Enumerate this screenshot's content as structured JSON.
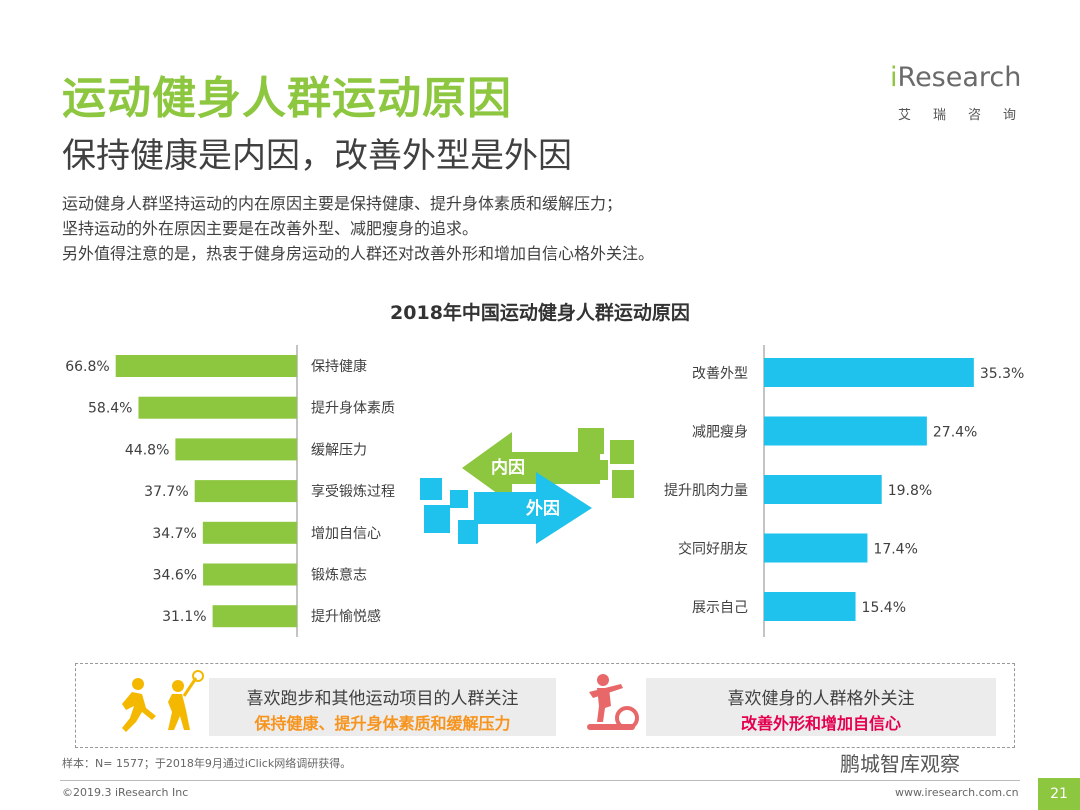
{
  "header": {
    "title": "运动健身人群运动原因",
    "subtitle": "保持健康是内因，改善外型是外因",
    "description": [
      "运动健身人群坚持运动的内在原因主要是保持健康、提升身体素质和缓解压力；",
      "坚持运动的外在原因主要是在改善外型、减肥瘦身的追求。",
      "另外值得注意的是，热衷于健身房运动的人群还对改善外形和增加自信心格外关注。"
    ]
  },
  "logo": {
    "word_i": "i",
    "word_rest": "Research",
    "chinese": "艾瑞咨询"
  },
  "chart_data": [
    {
      "type": "bar",
      "orientation": "horizontal",
      "group": "内因",
      "title": "2018年中国运动健身人群运动原因",
      "categories": [
        "保持健康",
        "提升身体素质",
        "缓解压力",
        "享受锻炼过程",
        "增加自信心",
        "锻炼意志",
        "提升愉悦感"
      ],
      "values": [
        66.8,
        58.4,
        44.8,
        37.7,
        34.7,
        34.6,
        31.1
      ],
      "labels": [
        "66.8%",
        "58.4%",
        "44.8%",
        "37.7%",
        "34.7%",
        "34.6%",
        "31.1%"
      ],
      "xlim": [
        0,
        70
      ],
      "unit": "%"
    },
    {
      "type": "bar",
      "orientation": "horizontal",
      "group": "外因",
      "categories": [
        "改善外型",
        "减肥瘦身",
        "提升肌肉力量",
        "交同好朋友",
        "展示自己"
      ],
      "values": [
        35.3,
        27.4,
        19.8,
        17.4,
        15.4
      ],
      "labels": [
        "35.3%",
        "27.4%",
        "19.8%",
        "17.4%",
        "15.4%"
      ],
      "xlim": [
        0,
        36
      ],
      "unit": "%"
    }
  ],
  "arrows": {
    "inner": "内因",
    "outer": "外因"
  },
  "colors": {
    "green": "#8dc63f",
    "blue": "#1ec2ec",
    "orange": "#f7941d",
    "pink": "#e5004f",
    "icon_yellow": "#f5b800",
    "icon_red": "#e8686a"
  },
  "summary": {
    "left_line1": "喜欢跑步和其他运动项目的人群关注",
    "left_line2": "保持健康、提升身体素质和缓解压力",
    "right_line1": "喜欢健身的人群格外关注",
    "right_line2": "改善外形和增加自信心"
  },
  "footer": {
    "sample_note": "样本：N= 1577；于2018年9月通过iClick网络调研获得。",
    "copyright": "©2019.3  iResearch Inc",
    "website": "www.iresearch.com.cn",
    "page_number": "21",
    "watermark": "鹏城智库观察"
  }
}
